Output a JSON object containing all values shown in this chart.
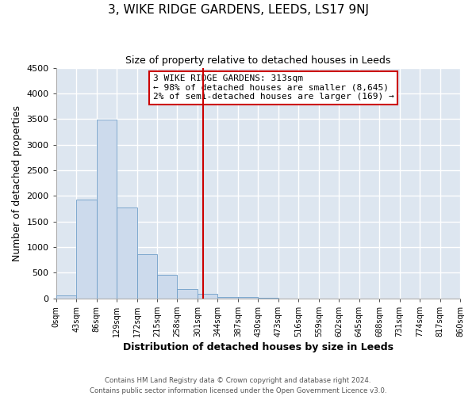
{
  "title": "3, WIKE RIDGE GARDENS, LEEDS, LS17 9NJ",
  "subtitle": "Size of property relative to detached houses in Leeds",
  "xlabel": "Distribution of detached houses by size in Leeds",
  "ylabel": "Number of detached properties",
  "bar_color": "#ccdaec",
  "bar_edge_color": "#6e9ec8",
  "background_color": "#dde6f0",
  "fig_background": "#ffffff",
  "grid_color": "#ffffff",
  "bin_edges": [
    0,
    43,
    86,
    129,
    172,
    215,
    258,
    301,
    344,
    387,
    430,
    473,
    516,
    559,
    602,
    645,
    688,
    731,
    774,
    817,
    860
  ],
  "bin_labels": [
    "0sqm",
    "43sqm",
    "86sqm",
    "129sqm",
    "172sqm",
    "215sqm",
    "258sqm",
    "301sqm",
    "344sqm",
    "387sqm",
    "430sqm",
    "473sqm",
    "516sqm",
    "559sqm",
    "602sqm",
    "645sqm",
    "688sqm",
    "731sqm",
    "774sqm",
    "817sqm",
    "860sqm"
  ],
  "bar_heights": [
    50,
    1930,
    3490,
    1780,
    860,
    455,
    175,
    95,
    30,
    20,
    5,
    0,
    0,
    0,
    0,
    0,
    0,
    0,
    0,
    0
  ],
  "ylim": [
    0,
    4500
  ],
  "yticks": [
    0,
    500,
    1000,
    1500,
    2000,
    2500,
    3000,
    3500,
    4000,
    4500
  ],
  "vline_x": 313,
  "vline_color": "#cc0000",
  "annotation_title": "3 WIKE RIDGE GARDENS: 313sqm",
  "annotation_line1": "← 98% of detached houses are smaller (8,645)",
  "annotation_line2": "2% of semi-detached houses are larger (169) →",
  "annotation_box_color": "#cc0000",
  "footer_line1": "Contains HM Land Registry data © Crown copyright and database right 2024.",
  "footer_line2": "Contains public sector information licensed under the Open Government Licence v3.0."
}
